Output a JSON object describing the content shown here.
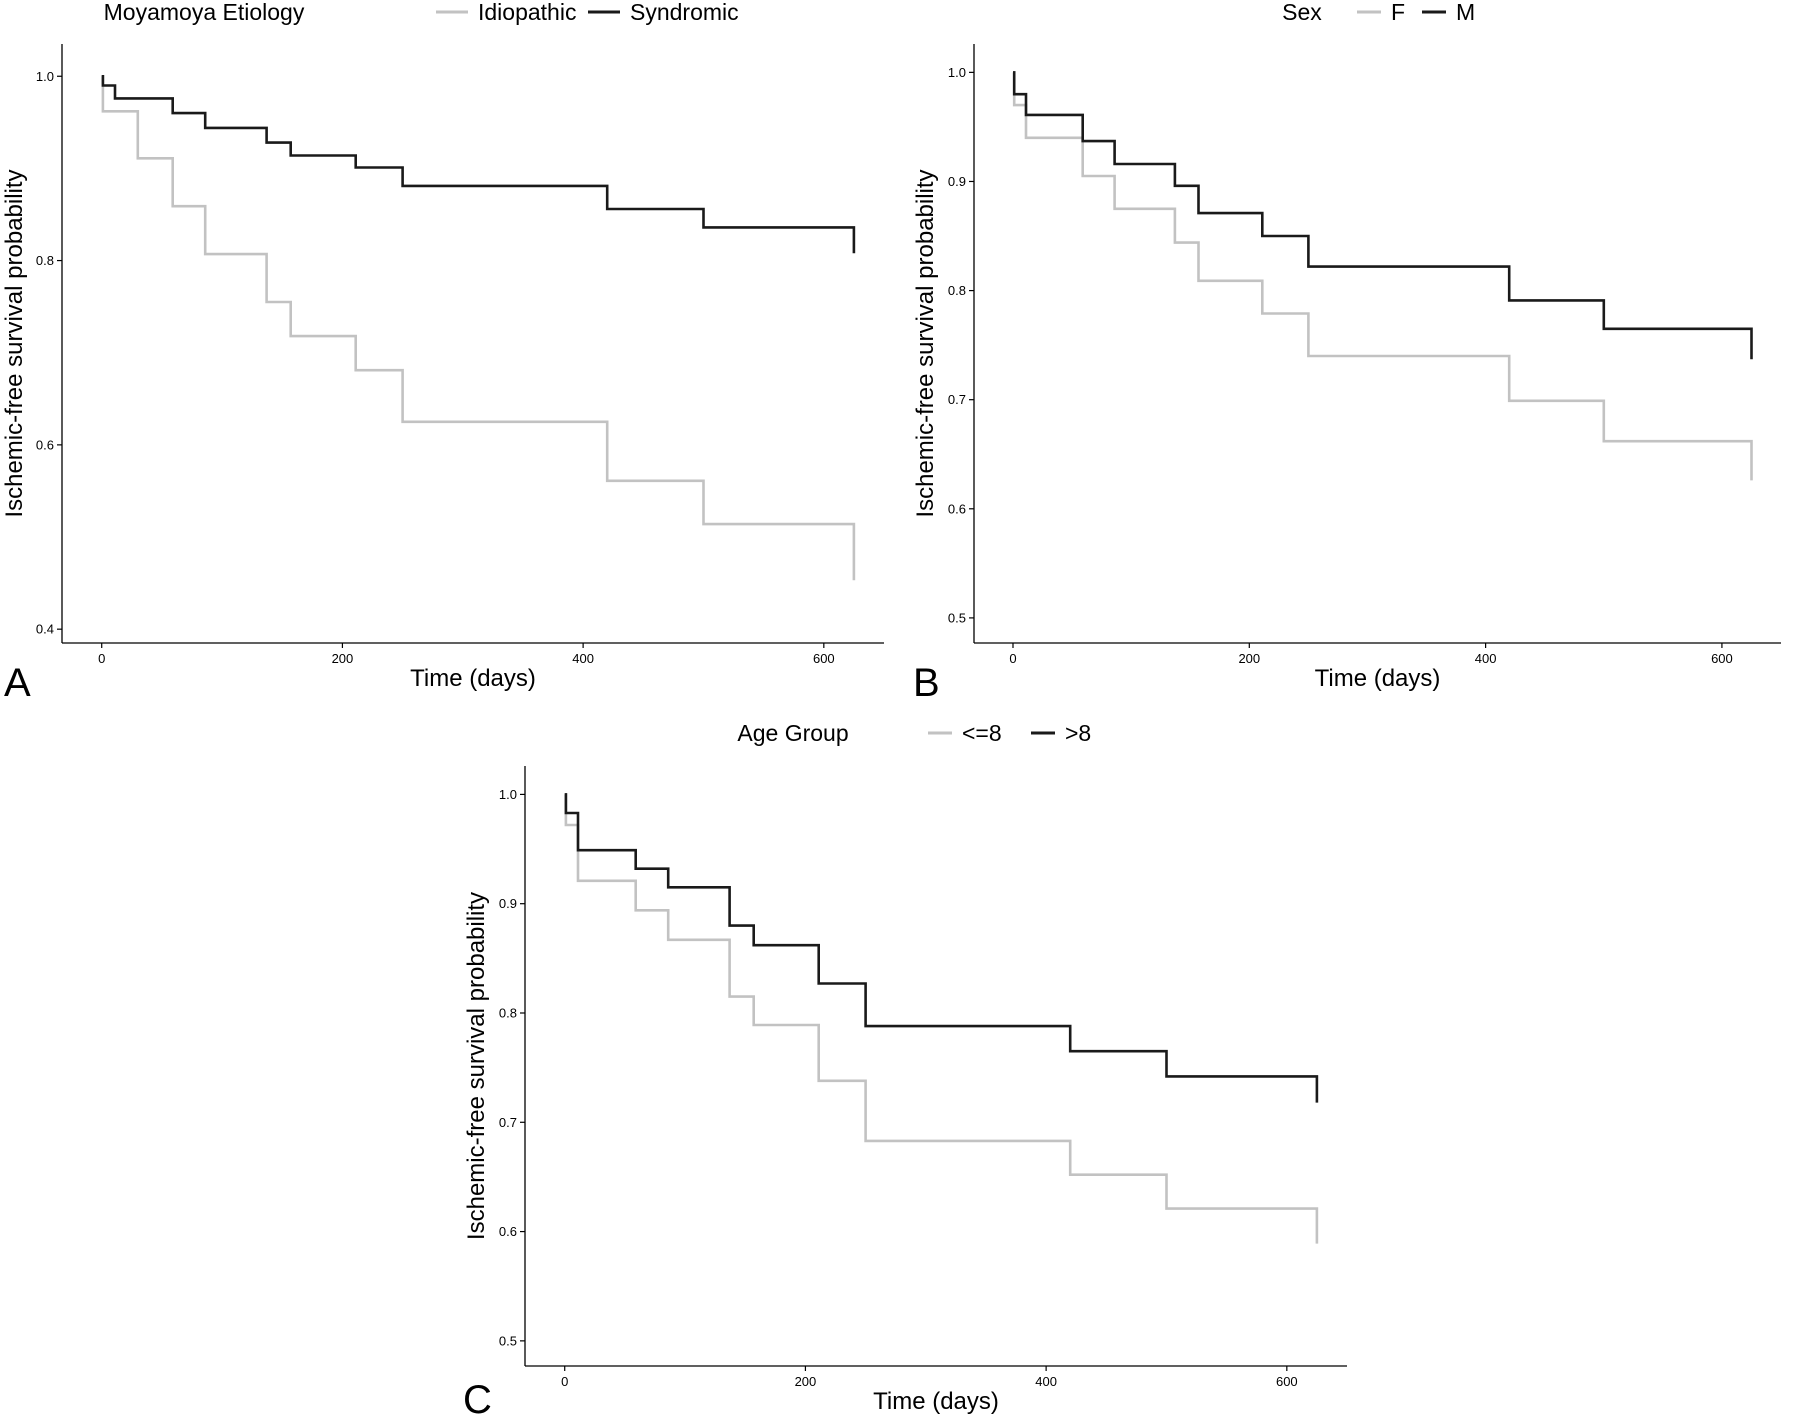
{
  "colors": {
    "light": "#c2c2c2",
    "dark": "#1a1a1a",
    "axis": "#000000"
  },
  "chart_data": [
    {
      "type": "line",
      "subtype": "kaplan-meier step",
      "panel_label": "A",
      "legend": {
        "title": "Moyamoya Etiology",
        "placement": "top"
      },
      "xlabel": "Time (days)",
      "ylabel": "Ischemic-free survival probability",
      "xlim": [
        -33,
        650
      ],
      "ylim": [
        0.385,
        1.035
      ],
      "xticks": [
        0,
        200,
        400,
        600
      ],
      "yticks": [
        0.4,
        0.6,
        0.8,
        1.0
      ],
      "xtick_labels": [
        "0",
        "200",
        "400",
        "600"
      ],
      "ytick_labels": [
        "0.4",
        "0.6",
        "0.8",
        "1.0"
      ],
      "grid": false,
      "series": [
        {
          "name": "Idiopathic",
          "color": "#c2c2c2",
          "x": [
            0,
            1,
            11,
            30,
            59,
            86,
            137,
            157,
            211,
            250,
            420,
            500,
            625,
            625
          ],
          "y": [
            1.0,
            0.962,
            0.962,
            0.911,
            0.859,
            0.807,
            0.755,
            0.718,
            0.681,
            0.625,
            0.561,
            0.514,
            0.514,
            0.453
          ]
        },
        {
          "name": "Syndromic",
          "color": "#1a1a1a",
          "x": [
            0,
            1,
            11,
            59,
            86,
            137,
            157,
            211,
            250,
            420,
            500,
            625,
            625
          ],
          "y": [
            1.0,
            0.99,
            0.976,
            0.96,
            0.944,
            0.928,
            0.914,
            0.901,
            0.881,
            0.856,
            0.836,
            0.836,
            0.808
          ]
        }
      ]
    },
    {
      "type": "line",
      "subtype": "kaplan-meier step",
      "panel_label": "B",
      "legend": {
        "title": "Sex",
        "placement": "top"
      },
      "xlabel": "Time (days)",
      "ylabel": "Ischemic-free survival probability",
      "xlim": [
        -33,
        650
      ],
      "ylim": [
        0.477,
        1.026
      ],
      "xticks": [
        0,
        200,
        400,
        600
      ],
      "yticks": [
        0.5,
        0.6,
        0.7,
        0.8,
        0.9,
        1.0
      ],
      "xtick_labels": [
        "0",
        "200",
        "400",
        "600"
      ],
      "ytick_labels": [
        "0.5",
        "0.6",
        "0.7",
        "0.8",
        "0.9",
        "1.0"
      ],
      "grid": false,
      "series": [
        {
          "name": "F",
          "color": "#c2c2c2",
          "x": [
            0,
            1,
            11,
            59,
            86,
            137,
            157,
            211,
            250,
            420,
            500,
            625,
            625
          ],
          "y": [
            1.0,
            0.97,
            0.94,
            0.905,
            0.875,
            0.844,
            0.809,
            0.779,
            0.74,
            0.699,
            0.662,
            0.662,
            0.626
          ]
        },
        {
          "name": "M",
          "color": "#1a1a1a",
          "x": [
            0,
            1,
            11,
            59,
            86,
            137,
            157,
            211,
            250,
            420,
            500,
            625,
            625
          ],
          "y": [
            1.0,
            0.98,
            0.961,
            0.937,
            0.916,
            0.896,
            0.871,
            0.85,
            0.822,
            0.791,
            0.765,
            0.765,
            0.737
          ]
        }
      ]
    },
    {
      "type": "line",
      "subtype": "kaplan-meier step",
      "panel_label": "C",
      "legend": {
        "title": "Age Group",
        "placement": "top"
      },
      "xlabel": "Time (days)",
      "ylabel": "Ischemic-free survival probability",
      "xlim": [
        -33,
        650
      ],
      "ylim": [
        0.477,
        1.026
      ],
      "xticks": [
        0,
        200,
        400,
        600
      ],
      "yticks": [
        0.5,
        0.6,
        0.7,
        0.8,
        0.9,
        1.0
      ],
      "xtick_labels": [
        "0",
        "200",
        "400",
        "600"
      ],
      "ytick_labels": [
        "0.5",
        "0.6",
        "0.7",
        "0.8",
        "0.9",
        "1.0"
      ],
      "grid": false,
      "series": [
        {
          "name": "<=8",
          "color": "#c2c2c2",
          "x": [
            0,
            1,
            11,
            59,
            86,
            137,
            157,
            211,
            250,
            420,
            500,
            625,
            625
          ],
          "y": [
            1.0,
            0.972,
            0.921,
            0.894,
            0.867,
            0.815,
            0.789,
            0.738,
            0.683,
            0.652,
            0.621,
            0.621,
            0.589
          ]
        },
        {
          "name": ">8",
          "color": "#1a1a1a",
          "x": [
            0,
            1,
            11,
            59,
            86,
            137,
            157,
            211,
            250,
            420,
            500,
            625,
            625
          ],
          "y": [
            1.0,
            0.983,
            0.949,
            0.932,
            0.915,
            0.88,
            0.862,
            0.827,
            0.788,
            0.765,
            0.742,
            0.742,
            0.718
          ]
        }
      ]
    }
  ]
}
